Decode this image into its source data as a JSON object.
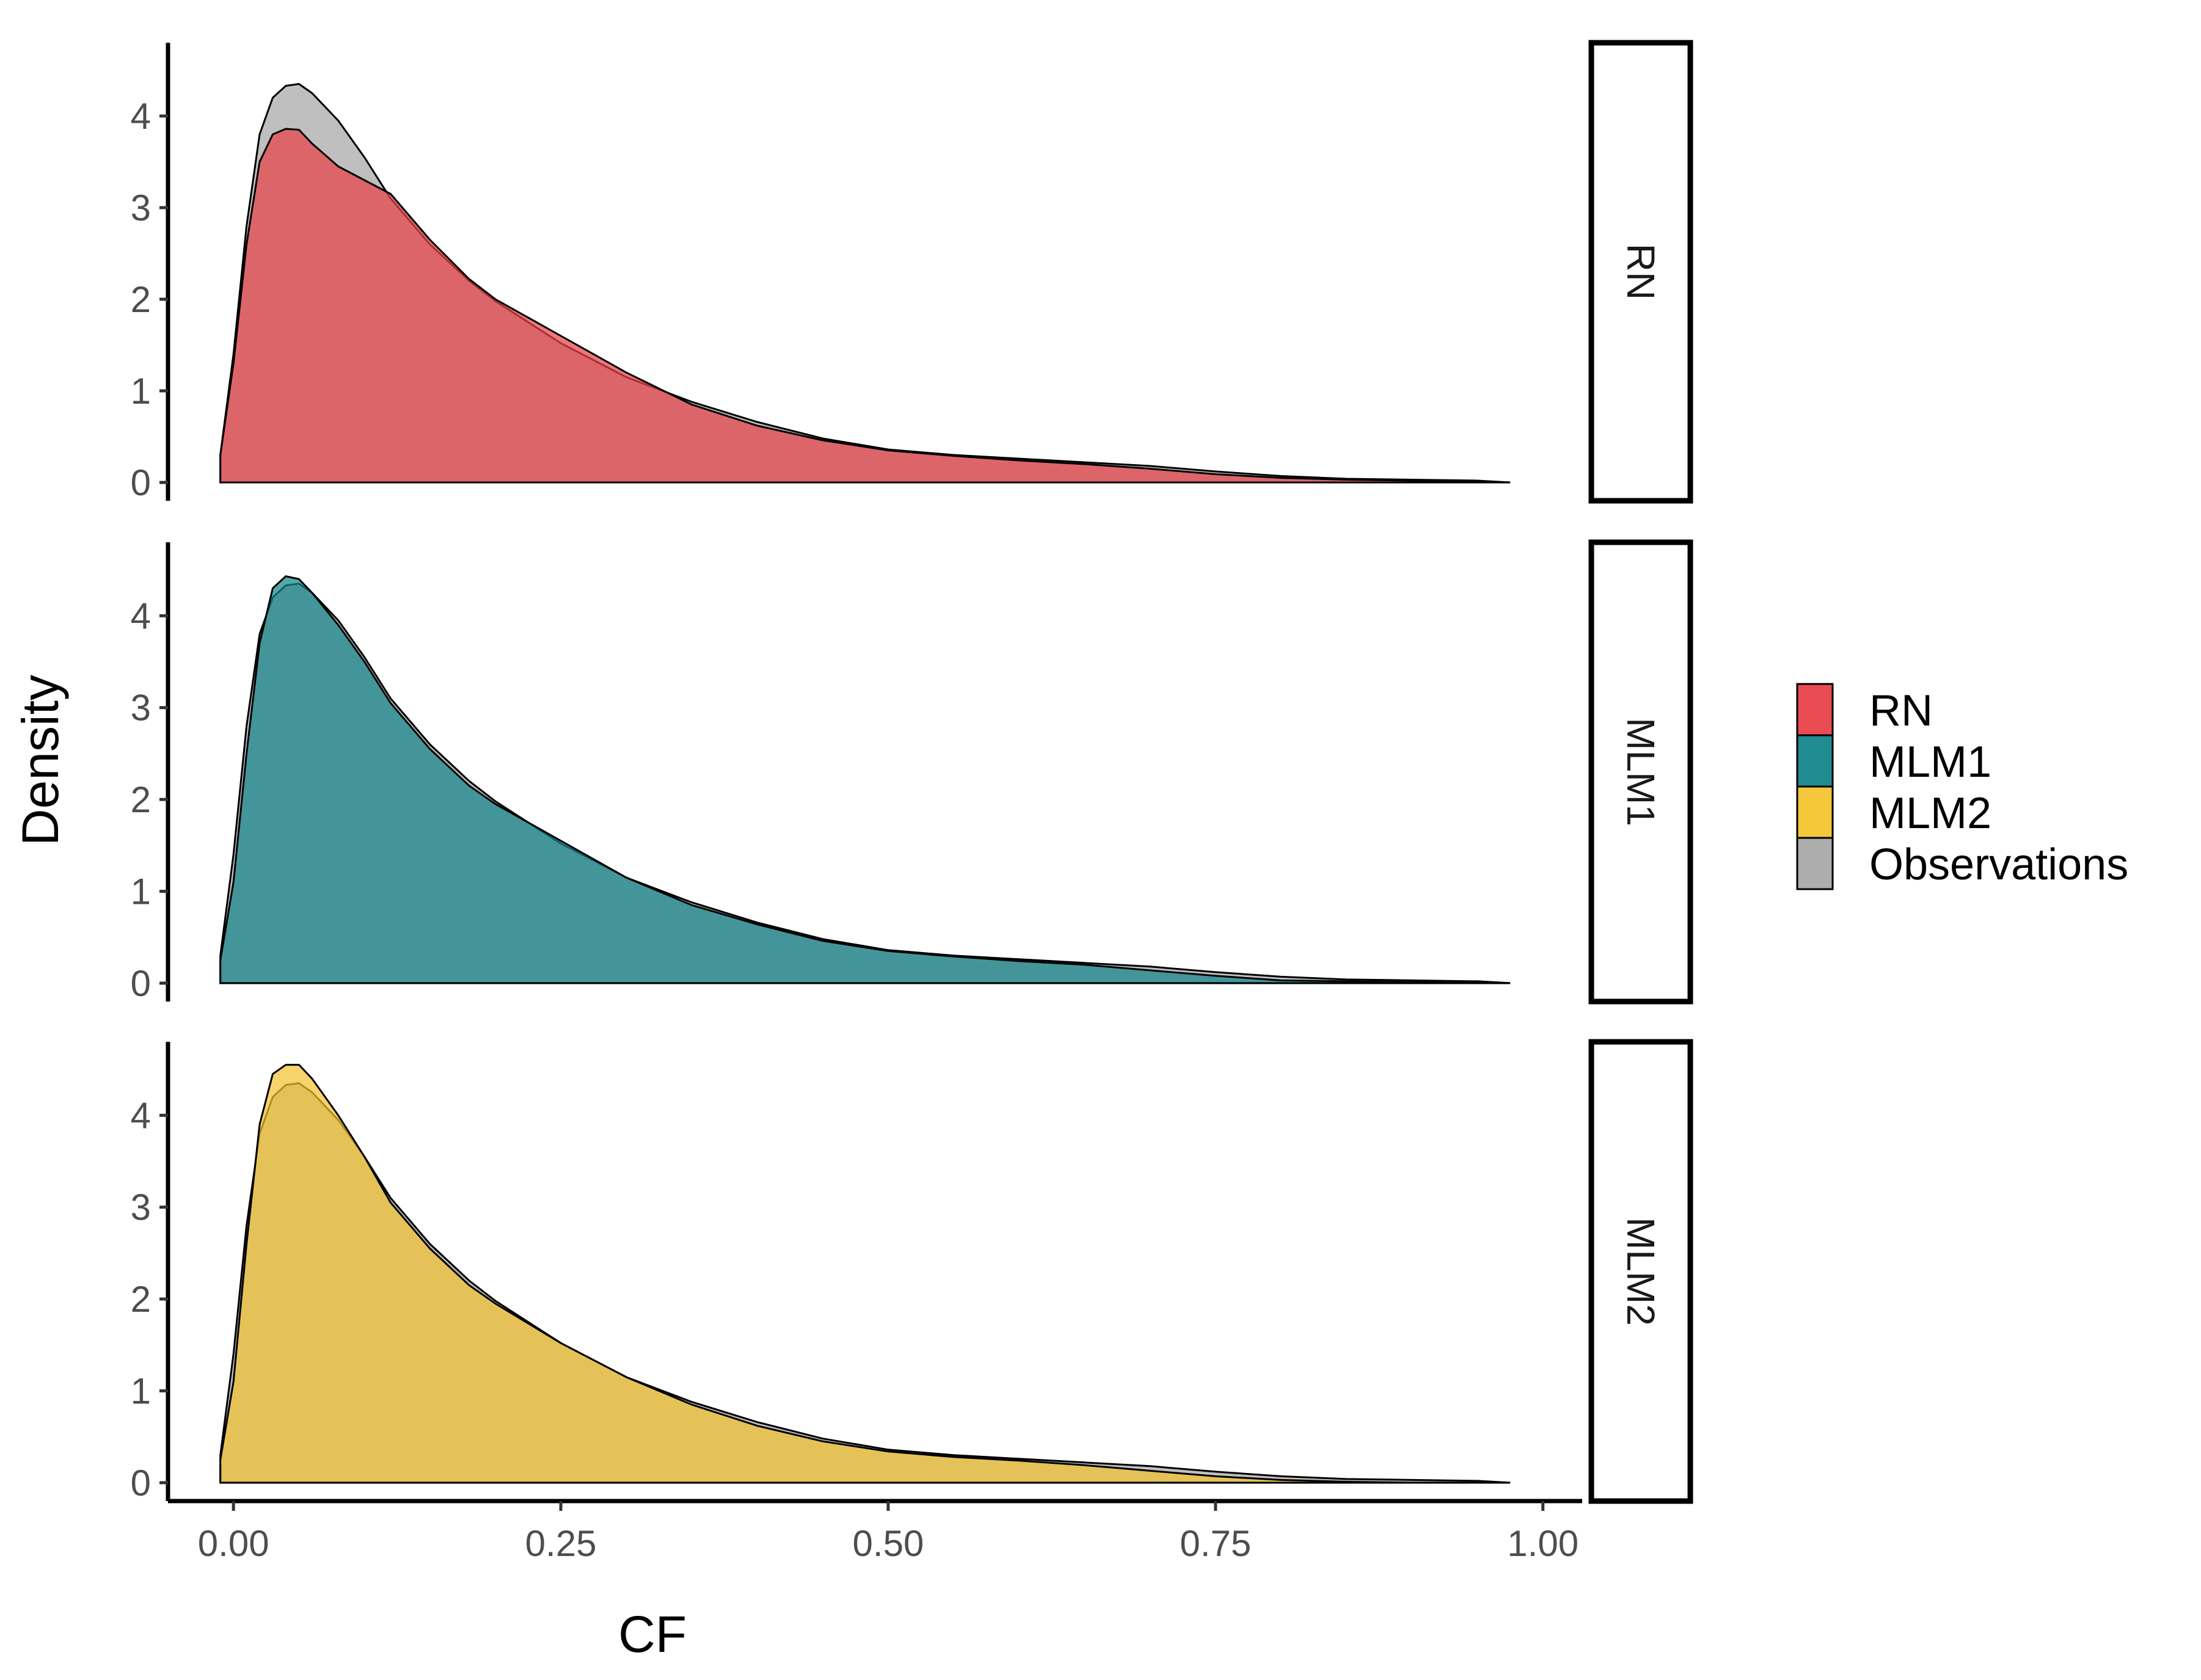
{
  "chart_data": {
    "type": "area",
    "subtype": "faceted density",
    "xlabel": "CF",
    "ylabel": "Density",
    "xlim": [
      -0.05,
      1.03
    ],
    "ylim": [
      -0.2,
      4.8
    ],
    "x_ticks": [
      0.0,
      0.25,
      0.5,
      0.75,
      1.0
    ],
    "x_tick_labels": [
      "0.00",
      "0.25",
      "0.50",
      "0.75",
      "1.00"
    ],
    "y_ticks": [
      0,
      1,
      2,
      3,
      4
    ],
    "y_tick_labels": [
      "0",
      "1",
      "2",
      "3",
      "4"
    ],
    "legend": {
      "position": "right",
      "entries": [
        {
          "label": "RN",
          "color": "#E8434A"
        },
        {
          "label": "MLM1",
          "color": "#14858A"
        },
        {
          "label": "MLM2",
          "color": "#F4C430"
        },
        {
          "label": "Observations",
          "color": "#A9A9A9"
        }
      ]
    },
    "observations": {
      "name": "Observations",
      "fill": "#A9A9A9",
      "x": [
        -0.01,
        0.0,
        0.01,
        0.02,
        0.03,
        0.04,
        0.05,
        0.06,
        0.08,
        0.1,
        0.12,
        0.15,
        0.18,
        0.2,
        0.25,
        0.3,
        0.35,
        0.4,
        0.45,
        0.5,
        0.55,
        0.6,
        0.65,
        0.7,
        0.75,
        0.8,
        0.85,
        0.9,
        0.95,
        0.975
      ],
      "y": [
        0.3,
        1.4,
        2.8,
        3.8,
        4.2,
        4.33,
        4.35,
        4.25,
        3.95,
        3.55,
        3.1,
        2.6,
        2.2,
        1.98,
        1.52,
        1.15,
        0.88,
        0.66,
        0.48,
        0.36,
        0.3,
        0.26,
        0.22,
        0.18,
        0.12,
        0.07,
        0.04,
        0.03,
        0.02,
        0.0
      ]
    },
    "facets": [
      {
        "label": "RN",
        "fill": "#E8434A",
        "x": [
          -0.01,
          0.0,
          0.01,
          0.02,
          0.03,
          0.04,
          0.05,
          0.06,
          0.08,
          0.1,
          0.12,
          0.15,
          0.18,
          0.2,
          0.25,
          0.3,
          0.35,
          0.4,
          0.45,
          0.5,
          0.55,
          0.6,
          0.65,
          0.7,
          0.75,
          0.8,
          0.85,
          0.9,
          0.95,
          0.975
        ],
        "y": [
          0.3,
          1.3,
          2.6,
          3.5,
          3.8,
          3.86,
          3.85,
          3.7,
          3.45,
          3.3,
          3.15,
          2.65,
          2.22,
          2.0,
          1.6,
          1.2,
          0.85,
          0.62,
          0.46,
          0.35,
          0.29,
          0.24,
          0.2,
          0.15,
          0.09,
          0.05,
          0.03,
          0.02,
          0.01,
          0.0
        ]
      },
      {
        "label": "MLM1",
        "fill": "#14858A",
        "x": [
          -0.01,
          0.0,
          0.01,
          0.02,
          0.03,
          0.04,
          0.05,
          0.06,
          0.08,
          0.1,
          0.12,
          0.15,
          0.18,
          0.2,
          0.25,
          0.3,
          0.35,
          0.4,
          0.45,
          0.5,
          0.55,
          0.6,
          0.65,
          0.7,
          0.75,
          0.8,
          0.85,
          0.9,
          0.95,
          0.975
        ],
        "y": [
          0.25,
          1.1,
          2.5,
          3.7,
          4.3,
          4.43,
          4.4,
          4.25,
          3.9,
          3.5,
          3.05,
          2.55,
          2.15,
          1.95,
          1.55,
          1.15,
          0.85,
          0.64,
          0.46,
          0.35,
          0.29,
          0.24,
          0.2,
          0.14,
          0.08,
          0.03,
          0.02,
          0.01,
          0.02,
          0.0
        ]
      },
      {
        "label": "MLM2",
        "fill": "#F4C430",
        "x": [
          -0.01,
          0.0,
          0.01,
          0.02,
          0.03,
          0.04,
          0.05,
          0.06,
          0.08,
          0.1,
          0.12,
          0.15,
          0.18,
          0.2,
          0.25,
          0.3,
          0.35,
          0.4,
          0.45,
          0.5,
          0.55,
          0.6,
          0.65,
          0.7,
          0.75,
          0.8,
          0.85,
          0.9,
          0.95,
          0.975
        ],
        "y": [
          0.25,
          1.1,
          2.6,
          3.9,
          4.45,
          4.55,
          4.55,
          4.4,
          4.0,
          3.55,
          3.05,
          2.55,
          2.15,
          1.95,
          1.52,
          1.15,
          0.85,
          0.62,
          0.45,
          0.34,
          0.28,
          0.24,
          0.19,
          0.13,
          0.07,
          0.03,
          0.01,
          0.0,
          0.0,
          0.0
        ]
      }
    ]
  }
}
